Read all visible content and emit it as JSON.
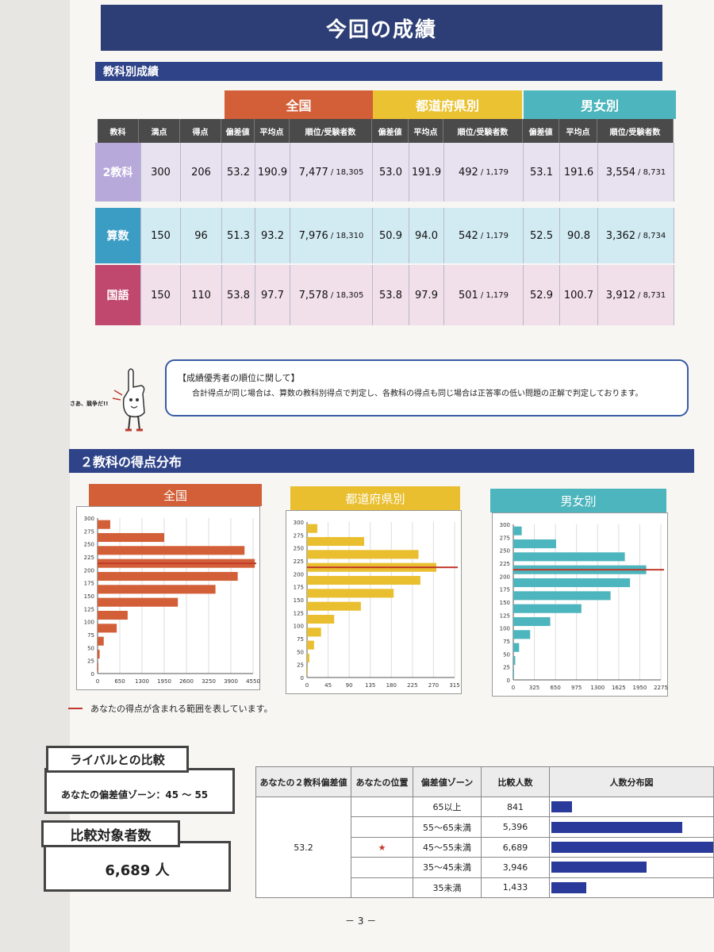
{
  "title": "今回の成績",
  "section1": "教科別成績",
  "groups": [
    "全国",
    "都道府県別",
    "男女別"
  ],
  "headers": [
    "教科",
    "満点",
    "得点",
    "偏差値",
    "平均点",
    "順位/受験者数",
    "偏差値",
    "平均点",
    "順位/受験者数",
    "偏差値",
    "平均点",
    "順位/受験者数"
  ],
  "rows": [
    {
      "subject": "2教科",
      "max": "300",
      "score": "206",
      "all_dev": "53.2",
      "all_avg": "190.9",
      "all_rank": "7,477",
      "all_total": "/ 18,305",
      "pref_dev": "53.0",
      "pref_avg": "191.9",
      "pref_rank": "492",
      "pref_total": "/ 1,179",
      "sex_dev": "53.1",
      "sex_avg": "191.6",
      "sex_rank": "3,554",
      "sex_total": "/ 8,731"
    },
    {
      "subject": "算数",
      "max": "150",
      "score": "96",
      "all_dev": "51.3",
      "all_avg": "93.2",
      "all_rank": "7,976",
      "all_total": "/ 18,310",
      "pref_dev": "50.9",
      "pref_avg": "94.0",
      "pref_rank": "542",
      "pref_total": "/ 1,179",
      "sex_dev": "52.5",
      "sex_avg": "90.8",
      "sex_rank": "3,362",
      "sex_total": "/ 8,734"
    },
    {
      "subject": "国語",
      "max": "150",
      "score": "110",
      "all_dev": "53.8",
      "all_avg": "97.7",
      "all_rank": "7,578",
      "all_total": "/ 18,305",
      "pref_dev": "53.8",
      "pref_avg": "97.9",
      "pref_rank": "501",
      "pref_total": "/ 1,179",
      "sex_dev": "52.9",
      "sex_avg": "100.7",
      "sex_rank": "3,912",
      "sex_total": "/ 8,731"
    }
  ],
  "note": {
    "title": "【成績優秀者の順位に関して】",
    "body": "合計得点が同じ場合は、算数の教科別得点で判定し、各教科の得点も同じ場合は正答率の低い問題の正解で判定しております。",
    "mascot_caption": "さあ、競争だ!!"
  },
  "section2": "２教科の得点分布",
  "legend": "あなたの得点が含まれる範囲を表しています。",
  "chart_data": [
    {
      "type": "bar",
      "orientation": "horizontal",
      "title": "全国",
      "color": "#d25f37",
      "y_ticks": [
        0,
        25,
        50,
        75,
        100,
        125,
        150,
        175,
        200,
        225,
        250,
        275,
        300
      ],
      "x_ticks": [
        0,
        650,
        1300,
        1950,
        2600,
        3250,
        3900,
        4550
      ],
      "xlim": [
        0,
        4550
      ],
      "bins": [
        0,
        25,
        50,
        75,
        100,
        125,
        150,
        175,
        200,
        225,
        250,
        275
      ],
      "values": [
        10,
        60,
        180,
        560,
        880,
        2350,
        3450,
        4100,
        4600,
        4300,
        1950,
        370
      ],
      "highlight_y": 200
    },
    {
      "type": "bar",
      "orientation": "horizontal",
      "title": "都道府県別",
      "color": "#e9bf2f",
      "y_ticks": [
        0,
        25,
        50,
        75,
        100,
        125,
        150,
        175,
        200,
        225,
        250,
        275,
        300
      ],
      "x_ticks": [
        0,
        45,
        90,
        135,
        180,
        225,
        270,
        315
      ],
      "xlim": [
        0,
        315
      ],
      "bins": [
        0,
        25,
        50,
        75,
        100,
        125,
        150,
        175,
        200,
        225,
        250,
        275
      ],
      "values": [
        1,
        5,
        15,
        30,
        58,
        115,
        185,
        242,
        276,
        238,
        122,
        22
      ],
      "highlight_y": 200
    },
    {
      "type": "bar",
      "orientation": "horizontal",
      "title": "男女別",
      "color": "#4db5bd",
      "y_ticks": [
        0,
        25,
        50,
        75,
        100,
        125,
        150,
        175,
        200,
        225,
        250,
        275,
        300
      ],
      "x_ticks": [
        0,
        325,
        650,
        975,
        1300,
        1625,
        1950,
        2275
      ],
      "xlim": [
        0,
        2275
      ],
      "bins": [
        0,
        25,
        50,
        75,
        100,
        125,
        150,
        175,
        200,
        225,
        250,
        275
      ],
      "values": [
        5,
        30,
        90,
        260,
        570,
        1050,
        1500,
        1800,
        2050,
        1720,
        660,
        130
      ],
      "highlight_y": 200
    }
  ],
  "rival": {
    "title": "ライバルとの比較",
    "zone": "あなたの偏差値ゾーン：45 ～ 55",
    "count_title": "比較対象者数",
    "count": "6,689 人"
  },
  "compare": {
    "headers": [
      "あなたの２教科偏差値",
      "あなたの位置",
      "偏差値ゾーン",
      "比較人数",
      "人数分布図"
    ],
    "deviation": "53.2",
    "marker": "★",
    "zones": [
      {
        "zone": "65以上",
        "count": "841",
        "value": 841,
        "mine": false
      },
      {
        "zone": "55～65未満",
        "count": "5,396",
        "value": 5396,
        "mine": false
      },
      {
        "zone": "45～55未満",
        "count": "6,689",
        "value": 6689,
        "mine": true
      },
      {
        "zone": "35～45未満",
        "count": "3,946",
        "value": 3946,
        "mine": false
      },
      {
        "zone": "35未満",
        "count": "1,433",
        "value": 1433,
        "mine": false
      }
    ]
  },
  "page_number": "－ 3 －"
}
